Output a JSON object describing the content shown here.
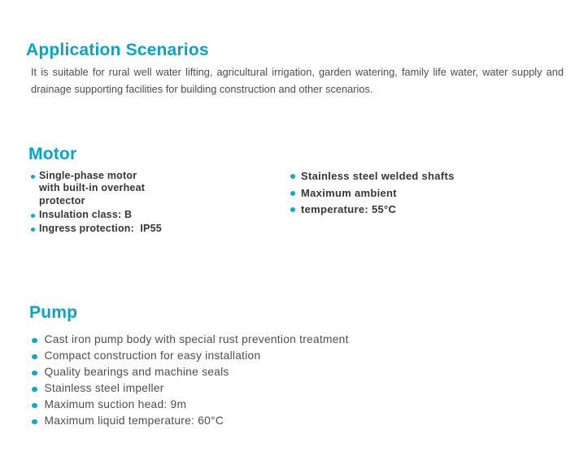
{
  "colors": {
    "accent_heading": "#0ba3c5",
    "bullet_dot": "#17a6c5",
    "motor_item_text": "#363636",
    "body_text": "#4e4e4e",
    "background": "#ffffff"
  },
  "sections": {
    "application": {
      "title": "Application Scenarios",
      "body": "It is suitable for rural well water lifting, agricultural irrigation, garden watering, family life water, water supply and drainage supporting facilities for building construction and other scenarios."
    },
    "motor": {
      "title": "Motor",
      "left_items": [
        "Single-phase motor\nwith built-in overheat\nprotector",
        "Insulation class: B",
        "Ingress protection:  IP55"
      ],
      "right_items": [
        "Stainless steel welded shafts",
        "Maximum ambient",
        "temperature: 55°C"
      ]
    },
    "pump": {
      "title": "Pump",
      "items": [
        "Cast iron pump body with special rust prevention treatment",
        "Compact construction for easy installation",
        "Quality bearings and machine seals",
        "Stainless steel impeller",
        "Maximum suction head: 9m",
        "Maximum liquid temperature: 60°C"
      ]
    }
  }
}
